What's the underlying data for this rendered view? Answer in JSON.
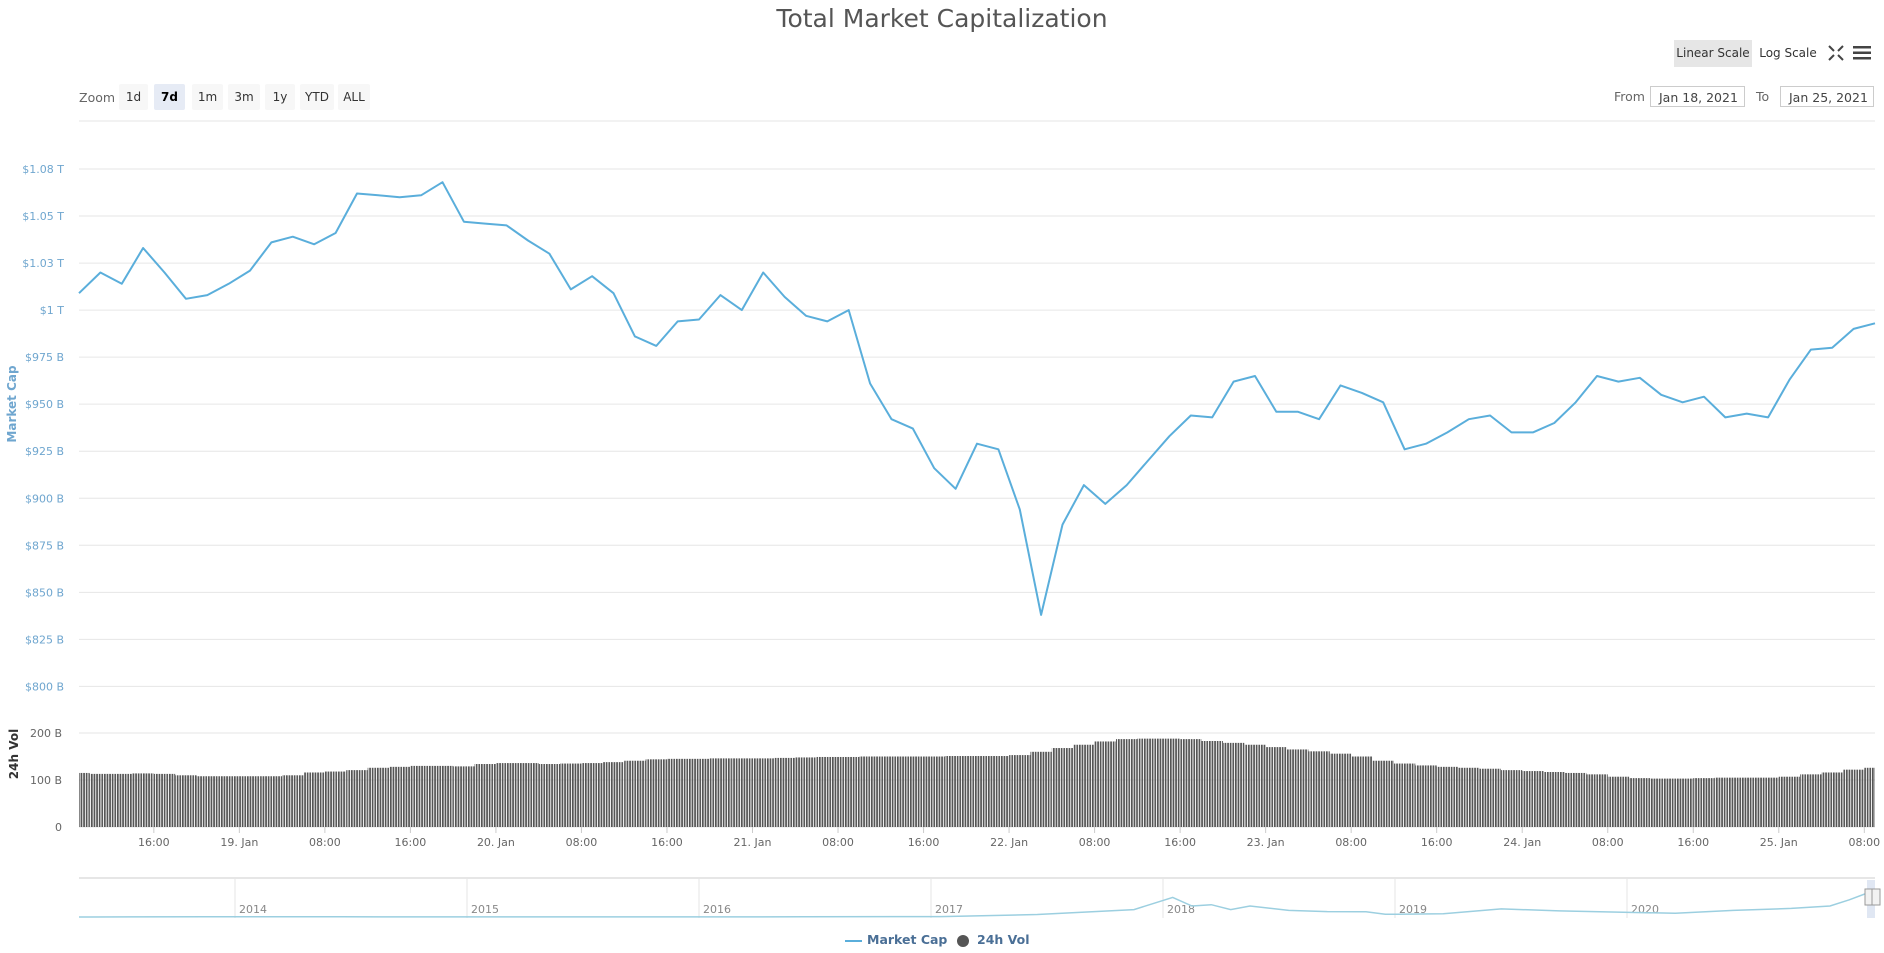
{
  "title": "Total Market Capitalization",
  "toolbar": {
    "scale_buttons": [
      {
        "label": "Linear Scale",
        "active": true
      },
      {
        "label": "Log Scale",
        "active": false
      }
    ],
    "fullscreen_icon": "fullscreen-icon",
    "menu_icon": "hamburger-menu-icon"
  },
  "range_selector": {
    "zoom_label": "Zoom",
    "buttons": [
      {
        "label": "1d"
      },
      {
        "label": "7d",
        "active": true
      },
      {
        "label": "1m"
      },
      {
        "label": "3m"
      },
      {
        "label": "1y"
      },
      {
        "label": "YTD"
      },
      {
        "label": "ALL"
      }
    ],
    "from_label": "From",
    "from_value": "Jan 18, 2021",
    "to_label": "To",
    "to_value": "Jan 25, 2021"
  },
  "legend": {
    "market_cap": "Market Cap",
    "volume": "24h Vol"
  },
  "colors": {
    "market_cap": "#5aaedb",
    "volume": "#555555",
    "axis_label": "#6fa6cf",
    "grid": "#e6e6e6"
  },
  "chart_data": [
    {
      "type": "line",
      "ylabel": "Market Cap",
      "yticks": [
        "$800 B",
        "$825 B",
        "$850 B",
        "$875 B",
        "$900 B",
        "$925 B",
        "$950 B",
        "$975 B",
        "$1 T",
        "$1.03 T",
        "$1.05 T",
        "$1.08 T"
      ],
      "ylim": [
        800,
        1075
      ],
      "grid": true,
      "xticks": [
        "16:00",
        "19. Jan",
        "08:00",
        "16:00",
        "20. Jan",
        "08:00",
        "16:00",
        "21. Jan",
        "08:00",
        "16:00",
        "22. Jan",
        "08:00",
        "16:00",
        "23. Jan",
        "08:00",
        "16:00",
        "24. Jan",
        "08:00",
        "16:00",
        "25. Jan",
        "08:00"
      ],
      "x": [
        "2021-01-18 09:00",
        "2021-01-18 11:00",
        "2021-01-18 13:00",
        "2021-01-18 15:00",
        "2021-01-18 17:00",
        "2021-01-18 19:00",
        "2021-01-18 21:00",
        "2021-01-18 23:00",
        "2021-01-19 01:00",
        "2021-01-19 03:00",
        "2021-01-19 05:00",
        "2021-01-19 07:00",
        "2021-01-19 09:00",
        "2021-01-19 11:00",
        "2021-01-19 13:00",
        "2021-01-19 15:00",
        "2021-01-19 17:00",
        "2021-01-19 19:00",
        "2021-01-19 21:00",
        "2021-01-19 23:00",
        "2021-01-20 01:00",
        "2021-01-20 03:00",
        "2021-01-20 05:00",
        "2021-01-20 07:00",
        "2021-01-20 09:00",
        "2021-01-20 11:00",
        "2021-01-20 13:00",
        "2021-01-20 15:00",
        "2021-01-20 17:00",
        "2021-01-20 19:00",
        "2021-01-20 21:00",
        "2021-01-20 23:00",
        "2021-01-21 01:00",
        "2021-01-21 03:00",
        "2021-01-21 05:00",
        "2021-01-21 07:00",
        "2021-01-21 09:00",
        "2021-01-21 11:00",
        "2021-01-21 13:00",
        "2021-01-21 15:00",
        "2021-01-21 17:00",
        "2021-01-21 19:00",
        "2021-01-21 21:00",
        "2021-01-21 23:00",
        "2021-01-22 01:00",
        "2021-01-22 03:00",
        "2021-01-22 05:00",
        "2021-01-22 07:00",
        "2021-01-22 09:00",
        "2021-01-22 11:00",
        "2021-01-22 13:00",
        "2021-01-22 15:00",
        "2021-01-22 17:00",
        "2021-01-22 19:00",
        "2021-01-22 21:00",
        "2021-01-22 23:00",
        "2021-01-23 01:00",
        "2021-01-23 03:00",
        "2021-01-23 05:00",
        "2021-01-23 07:00",
        "2021-01-23 09:00",
        "2021-01-23 11:00",
        "2021-01-23 13:00",
        "2021-01-23 15:00",
        "2021-01-23 17:00",
        "2021-01-23 19:00",
        "2021-01-23 21:00",
        "2021-01-23 23:00",
        "2021-01-24 01:00",
        "2021-01-24 03:00",
        "2021-01-24 05:00",
        "2021-01-24 07:00",
        "2021-01-24 09:00",
        "2021-01-24 11:00",
        "2021-01-24 13:00",
        "2021-01-24 15:00",
        "2021-01-24 17:00",
        "2021-01-24 19:00",
        "2021-01-24 21:00",
        "2021-01-24 23:00",
        "2021-01-25 01:00",
        "2021-01-25 03:00",
        "2021-01-25 05:00",
        "2021-01-25 07:00",
        "2021-01-25 09:00"
      ],
      "series": [
        {
          "name": "Market Cap",
          "unit": "B USD",
          "values": [
            1009,
            1020,
            1014,
            1033,
            1020,
            1006,
            1008,
            1014,
            1021,
            1036,
            1039,
            1035,
            1041,
            1062,
            1061,
            1060,
            1061,
            1068,
            1047,
            1046,
            1045,
            1037,
            1030,
            1011,
            1018,
            1009,
            986,
            981,
            994,
            995,
            1008,
            1000,
            1020,
            1007,
            997,
            994,
            1000,
            961,
            942,
            937,
            916,
            905,
            929,
            926,
            894,
            838,
            886,
            907,
            897,
            907,
            920,
            933,
            944,
            943,
            962,
            965,
            946,
            946,
            942,
            960,
            956,
            951,
            926,
            929,
            935,
            942,
            944,
            935,
            935,
            940,
            951,
            965,
            962,
            964,
            955,
            951,
            954,
            943,
            945,
            943,
            963,
            979,
            980,
            990,
            993
          ]
        }
      ]
    },
    {
      "type": "bar",
      "ylabel": "24h Vol",
      "yticks": [
        "0",
        "100 B",
        "200 B"
      ],
      "ylim": [
        0,
        200
      ],
      "series": [
        {
          "name": "24h Vol",
          "unit": "B USD",
          "values": [
            115,
            113,
            113,
            114,
            113,
            110,
            108,
            108,
            108,
            108,
            110,
            116,
            118,
            121,
            126,
            128,
            130,
            130,
            129,
            134,
            136,
            136,
            134,
            135,
            136,
            138,
            141,
            144,
            145,
            145,
            146,
            146,
            146,
            147,
            148,
            149,
            149,
            150,
            150,
            150,
            150,
            151,
            151,
            151,
            153,
            160,
            168,
            175,
            182,
            187,
            188,
            188,
            187,
            183,
            179,
            175,
            170,
            165,
            161,
            156,
            150,
            141,
            135,
            131,
            128,
            126,
            124,
            121,
            119,
            117,
            115,
            112,
            107,
            104,
            103,
            103,
            104,
            105,
            105,
            105,
            107,
            112,
            116,
            122,
            126
          ]
        }
      ]
    },
    {
      "type": "line",
      "role": "navigator",
      "xticks": [
        "2014",
        "2015",
        "2016",
        "2017",
        "2018",
        "2019",
        "2020"
      ],
      "x": [
        "2013-05",
        "2013-11",
        "2014-06",
        "2015-06",
        "2016-06",
        "2017-01",
        "2017-06",
        "2017-11",
        "2018-01",
        "2018-02",
        "2018-03",
        "2018-04",
        "2018-05",
        "2018-07",
        "2018-09",
        "2018-11",
        "2018-12",
        "2019-03",
        "2019-06",
        "2019-09",
        "2019-12",
        "2020-03",
        "2020-06",
        "2020-09",
        "2020-11",
        "2020-12",
        "2021-01"
      ],
      "values": [
        2,
        12,
        8,
        4,
        10,
        18,
        100,
        300,
        800,
        450,
        500,
        300,
        450,
        270,
        220,
        210,
        110,
        130,
        330,
        250,
        200,
        150,
        270,
        350,
        450,
        700,
        1000
      ]
    }
  ]
}
